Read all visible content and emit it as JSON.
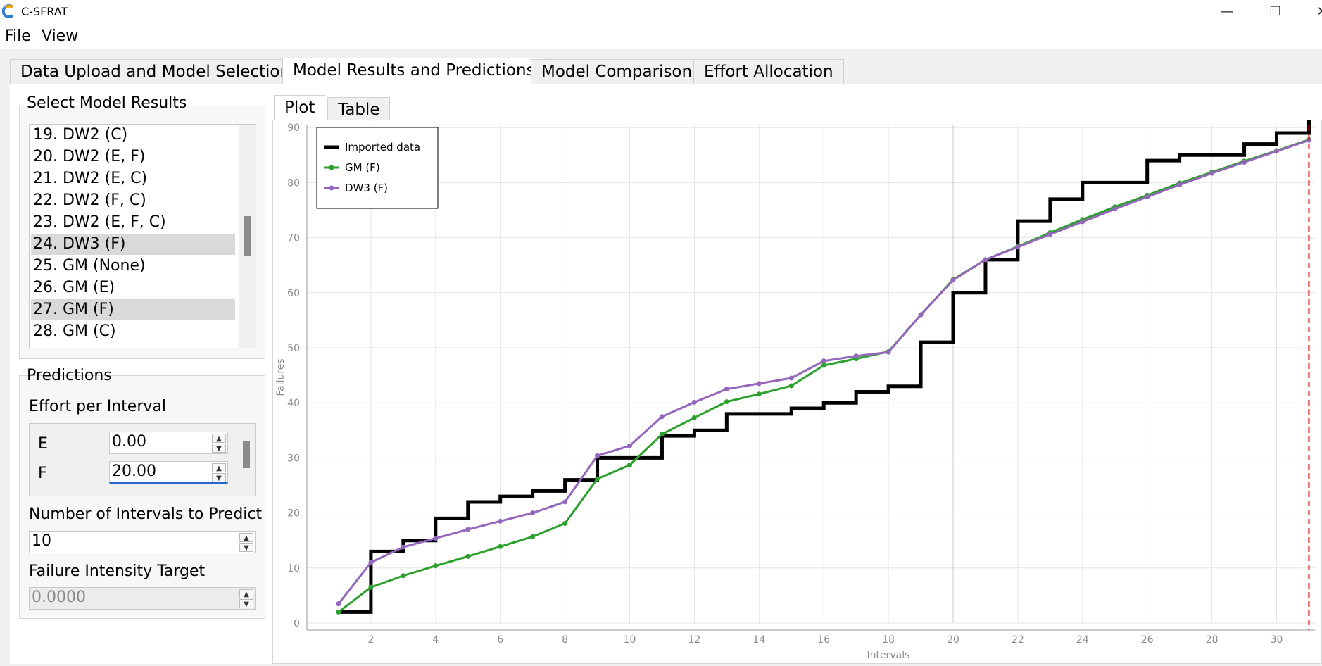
{
  "window": {
    "title": "C-SFRAT"
  },
  "menu": [
    {
      "label": "File"
    },
    {
      "label": "View"
    }
  ],
  "tabs": [
    {
      "label": "Data Upload and Model Selection"
    },
    {
      "label": "Model Results and Predictions"
    },
    {
      "label": "Model Comparison"
    },
    {
      "label": "Effort Allocation"
    }
  ],
  "select_models": {
    "title": "Select Model Results",
    "items": [
      {
        "label": "19. DW2 (C)",
        "selected": false
      },
      {
        "label": "20. DW2 (E, F)",
        "selected": false
      },
      {
        "label": "21. DW2 (E, C)",
        "selected": false
      },
      {
        "label": "22. DW2 (F, C)",
        "selected": false
      },
      {
        "label": "23. DW2 (E, F, C)",
        "selected": false
      },
      {
        "label": "24. DW3 (F)",
        "selected": true
      },
      {
        "label": "25. GM (None)",
        "selected": false
      },
      {
        "label": "26. GM (E)",
        "selected": false
      },
      {
        "label": "27. GM (F)",
        "selected": true
      },
      {
        "label": "28. GM (C)",
        "selected": false
      }
    ]
  },
  "predictions": {
    "title": "Predictions",
    "effort_label": "Effort per Interval",
    "effort_rows": [
      {
        "label": "E",
        "value": "0.00"
      },
      {
        "label": "F",
        "value": "20.00"
      }
    ],
    "intervals_label": "Number of Intervals to Predict",
    "intervals_value": "10",
    "intensity_label": "Failure Intensity Target",
    "intensity_value": "0.0000"
  },
  "plot_tabs": [
    {
      "label": "Plot"
    },
    {
      "label": "Table"
    }
  ],
  "chart_data": {
    "type": "line",
    "xlabel": "Intervals",
    "ylabel": "Failures",
    "xlim": [
      0,
      31
    ],
    "ylim": [
      0,
      90
    ],
    "xticks": [
      "2",
      "4",
      "6",
      "8",
      "10",
      "12",
      "14",
      "16",
      "18",
      "20",
      "22",
      "24",
      "26",
      "28",
      "30"
    ],
    "yticks": [
      "0",
      "10",
      "20",
      "30",
      "40",
      "50",
      "60",
      "70",
      "80",
      "90"
    ],
    "grid": true,
    "legend_position": "top-left",
    "prediction_marker_x": 31,
    "series": [
      {
        "name": "Imported data",
        "style": "step",
        "color": "#000000",
        "x": [
          1,
          2,
          3,
          4,
          5,
          6,
          7,
          8,
          9,
          10,
          11,
          12,
          13,
          14,
          15,
          16,
          17,
          18,
          19,
          20,
          21,
          22,
          23,
          24,
          25,
          26,
          27,
          28,
          29,
          30,
          31
        ],
        "values": [
          2,
          13,
          15,
          19,
          22,
          23,
          24,
          26,
          30,
          30,
          34,
          35,
          38,
          38,
          39,
          40,
          42,
          43,
          51,
          60,
          66,
          73,
          77,
          80,
          80,
          84,
          85,
          85,
          87,
          89,
          92
        ]
      },
      {
        "name": "GM (F)",
        "style": "line-markers",
        "color": "#2ca02c",
        "x": [
          1,
          2,
          3,
          4,
          5,
          6,
          7,
          8,
          9,
          10,
          11,
          12,
          13,
          14,
          15,
          16,
          17,
          18,
          19,
          20,
          21,
          22,
          23,
          24,
          25,
          26,
          27,
          28,
          29,
          30,
          31
        ],
        "values": [
          2.0,
          6.5,
          8.6,
          10.4,
          12.1,
          13.9,
          15.7,
          18.1,
          26.2,
          28.7,
          34.3,
          37.3,
          40.2,
          41.6,
          43.1,
          46.8,
          48.0,
          49.3,
          56.0,
          62.4,
          66.0,
          68.4,
          70.9,
          73.3,
          75.6,
          77.7,
          79.9,
          81.9,
          83.9,
          85.8,
          87.8
        ]
      },
      {
        "name": "DW3 (F)",
        "style": "line-markers",
        "color": "#9467bd",
        "x": [
          1,
          2,
          3,
          4,
          5,
          6,
          7,
          8,
          9,
          10,
          11,
          12,
          13,
          14,
          15,
          16,
          17,
          18,
          19,
          20,
          21,
          22,
          23,
          24,
          25,
          26,
          27,
          28,
          29,
          30,
          31
        ],
        "values": [
          3.5,
          11.0,
          13.8,
          15.4,
          17.0,
          18.5,
          20.0,
          22.0,
          30.4,
          32.2,
          37.5,
          40.1,
          42.5,
          43.5,
          44.5,
          47.6,
          48.5,
          49.2,
          56.0,
          62.3,
          66.0,
          68.3,
          70.6,
          72.9,
          75.2,
          77.4,
          79.6,
          81.7,
          83.7,
          85.7,
          87.7
        ]
      }
    ]
  },
  "colors": {
    "prediction_line": "#e00000",
    "grid": "#e6e6e6",
    "tick_text": "#8a8a8a"
  }
}
